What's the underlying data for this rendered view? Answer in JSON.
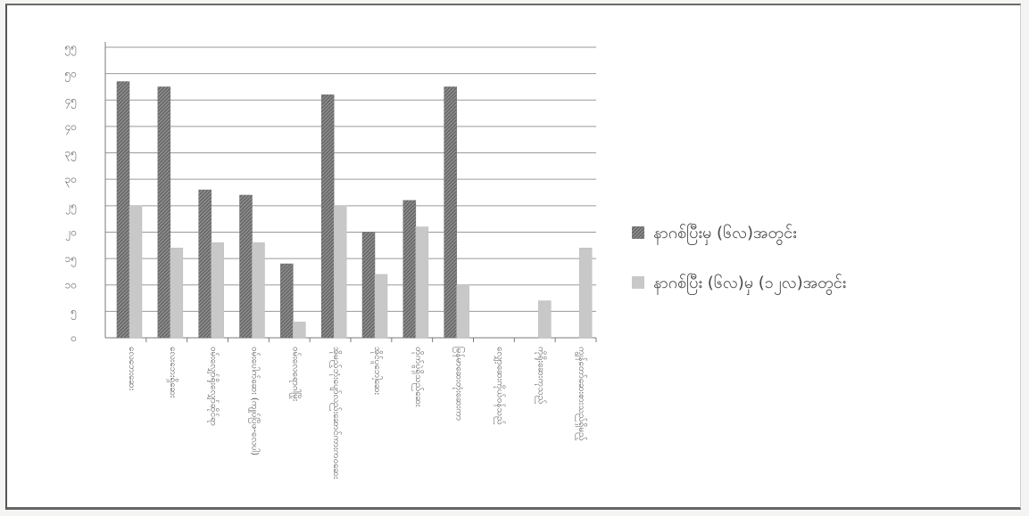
{
  "chart_data": {
    "type": "bar",
    "categories": [
      "လေဘေးဆေး",
      "လေးဘေးရှိဆေး",
      "ဝမ်းလျှော်ရိုးလျှော်ဆိုင်ရာ",
      "ဝမ်းပေါက်ဆေး (ကျုပ်ပြိဖ-လေပါ)",
      "ဝမ်းလေရောဂါမြိုး",
      "အိုမည့်ဘုံးပျော်လည်းဆောင်ကားကဝဆေး",
      "အိုင်ပူဘေါ့ဆေး",
      "တိုက်ပွဲရှိသည်ဆေး",
      "မြန်မာဆေးတုံးဆေးကာ",
      "လျှော့ဆေးကိုယ်ဝန်သည်",
      "ကိုရိုးဆေးကုသည်",
      "ကျွန်တော်ဆေးစားသည်ရှိမည့်"
    ],
    "series": [
      {
        "name": "နာဂစ်ပြီးမှ (၆လ)အတွင်း",
        "values": [
          48.5,
          47.5,
          28,
          27,
          14,
          46,
          20,
          26,
          47.5,
          0,
          0,
          0
        ]
      },
      {
        "name": "နာဂစ်ပြီး (၆လ)မှ (၁၂လ)အတွင်း",
        "values": [
          25,
          17,
          18,
          18,
          3,
          25,
          12,
          21,
          10,
          0,
          7,
          17
        ]
      }
    ],
    "yticks": [
      {
        "v": 0,
        "label": "၀"
      },
      {
        "v": 5,
        "label": "၅"
      },
      {
        "v": 10,
        "label": "၁၀"
      },
      {
        "v": 15,
        "label": "၁၅"
      },
      {
        "v": 20,
        "label": "၂၀"
      },
      {
        "v": 25,
        "label": "၂၅"
      },
      {
        "v": 30,
        "label": "၃၀"
      },
      {
        "v": 35,
        "label": "၃၅"
      },
      {
        "v": 40,
        "label": "၄၀"
      },
      {
        "v": 45,
        "label": "၄၅"
      },
      {
        "v": 50,
        "label": "၅၀"
      },
      {
        "v": 55,
        "label": "၅၅"
      }
    ],
    "ylim": [
      0,
      55
    ],
    "grid": true,
    "legend_position": "right",
    "colors": {
      "series1": "#8c8c8c",
      "series2": "#c8c8c8"
    }
  }
}
